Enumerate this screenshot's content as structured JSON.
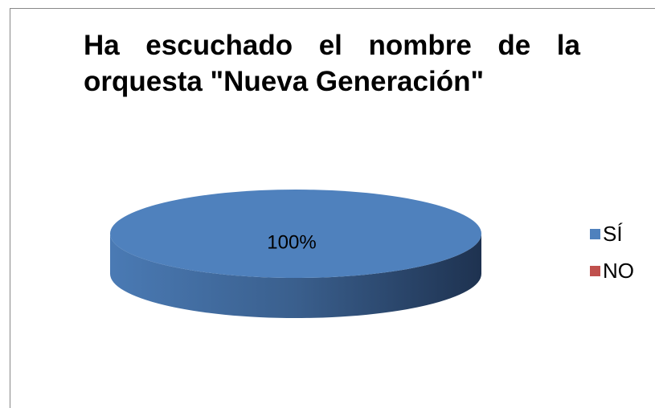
{
  "chart_data": {
    "type": "pie",
    "title": "Ha escuchado el nombre de la orquesta \"Nueva Generación\"",
    "categories": [
      "SÍ",
      "NO"
    ],
    "values": [
      100,
      0
    ],
    "value_labels": [
      "100%",
      null
    ],
    "colors": [
      "#4f81bd",
      "#c0504d"
    ],
    "legend": "right"
  }
}
